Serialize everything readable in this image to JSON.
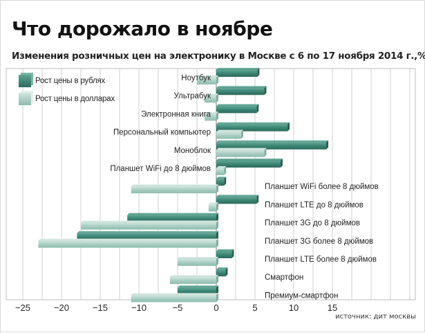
{
  "chart_data": {
    "type": "bar",
    "orientation": "horizontal",
    "title": "Что дорожало в ноябре",
    "subtitle": "Изменения розничных цен на электронику в Москве с 6 по 17 ноября 2014 г.,%",
    "source": "источник: дит москвы",
    "categories": [
      "Ноутбук",
      "Ультрабук",
      "Электронная книга",
      "Персональный компьютер",
      "Моноблок",
      "Планшет WiFi до 8 дюймов",
      "Планшет WiFi более 8 дюймов",
      "Планшет LTE до 8 дюймов",
      "Планшет 3G до 8 дюймов",
      "Планшет 3G более 8 дюймов",
      "Планшет LTE более 8 дюймов",
      "Смартфон",
      "Премиум-смартфон"
    ],
    "series": [
      {
        "name": "Рост цены в рублях",
        "color": "#3b8473",
        "values": [
          5.3,
          6.2,
          5.2,
          9.2,
          14.2,
          8.3,
          1.0,
          5.2,
          -11.5,
          -18.0,
          2.0,
          1.2,
          -5.0
        ]
      },
      {
        "name": "Рост цены в долларах",
        "color": "#a9cdc2",
        "values": [
          -2.5,
          -1.5,
          -1.5,
          3.2,
          6.2,
          1.0,
          -11.0,
          -1.0,
          -17.5,
          -23.0,
          -5.0,
          -6.0,
          -11.0
        ]
      }
    ],
    "xlim": [
      -26,
      16
    ],
    "xticks": [
      -25,
      -20,
      -15,
      -10,
      -5,
      0,
      5,
      10,
      15
    ],
    "grid": true,
    "legend_position": "top-left"
  }
}
